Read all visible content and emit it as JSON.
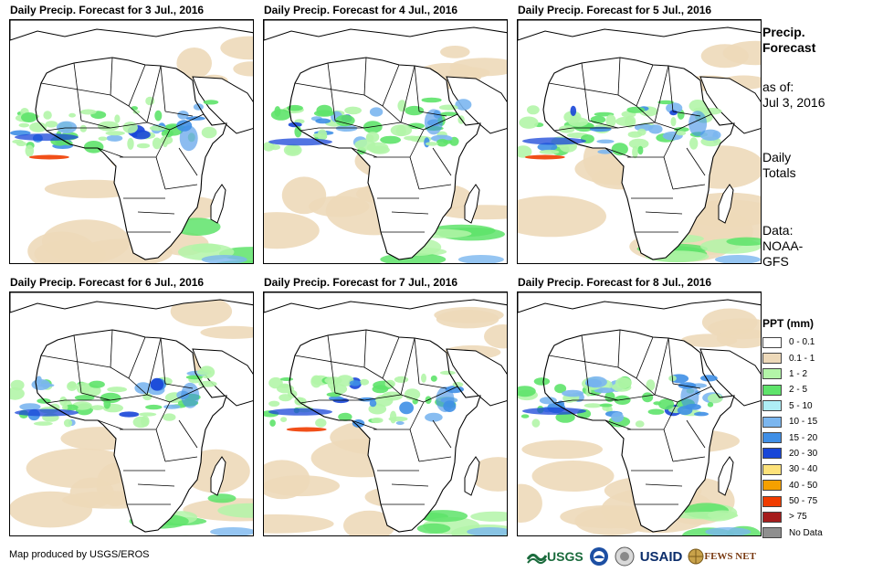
{
  "panels": [
    {
      "title": "Daily Precip. Forecast for 3 Jul., 2016",
      "seed": 3
    },
    {
      "title": "Daily Precip. Forecast for 4 Jul., 2016",
      "seed": 4
    },
    {
      "title": "Daily Precip. Forecast for 5 Jul., 2016",
      "seed": 5
    },
    {
      "title": "Daily Precip. Forecast for 6 Jul., 2016",
      "seed": 6
    },
    {
      "title": "Daily Precip. Forecast for 7 Jul., 2016",
      "seed": 7
    },
    {
      "title": "Daily Precip. Forecast for 8 Jul., 2016",
      "seed": 8
    }
  ],
  "side": {
    "title_line1": "Precip.",
    "title_line2": "Forecast",
    "asof_label": "as of:",
    "asof_date": "Jul 3, 2016",
    "daily_line1": "Daily",
    "daily_line2": "Totals",
    "data_line1": "Data:",
    "data_line2": "NOAA-",
    "data_line3": "GFS"
  },
  "legend": {
    "title": "PPT (mm)",
    "items": [
      {
        "label": "0 - 0.1",
        "color": "#ffffff"
      },
      {
        "label": "0.1 - 1",
        "color": "#edd9b9"
      },
      {
        "label": "1 - 2",
        "color": "#b3f5a8"
      },
      {
        "label": "2 - 5",
        "color": "#5ee36a"
      },
      {
        "label": "5 - 10",
        "color": "#aeeef6"
      },
      {
        "label": "10 - 15",
        "color": "#7bb6ef"
      },
      {
        "label": "15 - 20",
        "color": "#3f8fe6"
      },
      {
        "label": "20 - 30",
        "color": "#1846d8"
      },
      {
        "label": "30 - 40",
        "color": "#fde27a"
      },
      {
        "label": "40 - 50",
        "color": "#f5a000"
      },
      {
        "label": "50 - 75",
        "color": "#f03c00"
      },
      {
        "label": "> 75",
        "color": "#a51c1c"
      },
      {
        "label": "No Data",
        "color": "#8f8f8f"
      }
    ]
  },
  "credit": "Map produced by USGS/EROS",
  "logos": {
    "usgs": "USGS",
    "usaid": "USAID",
    "fewsnet": "FEWS NET"
  }
}
